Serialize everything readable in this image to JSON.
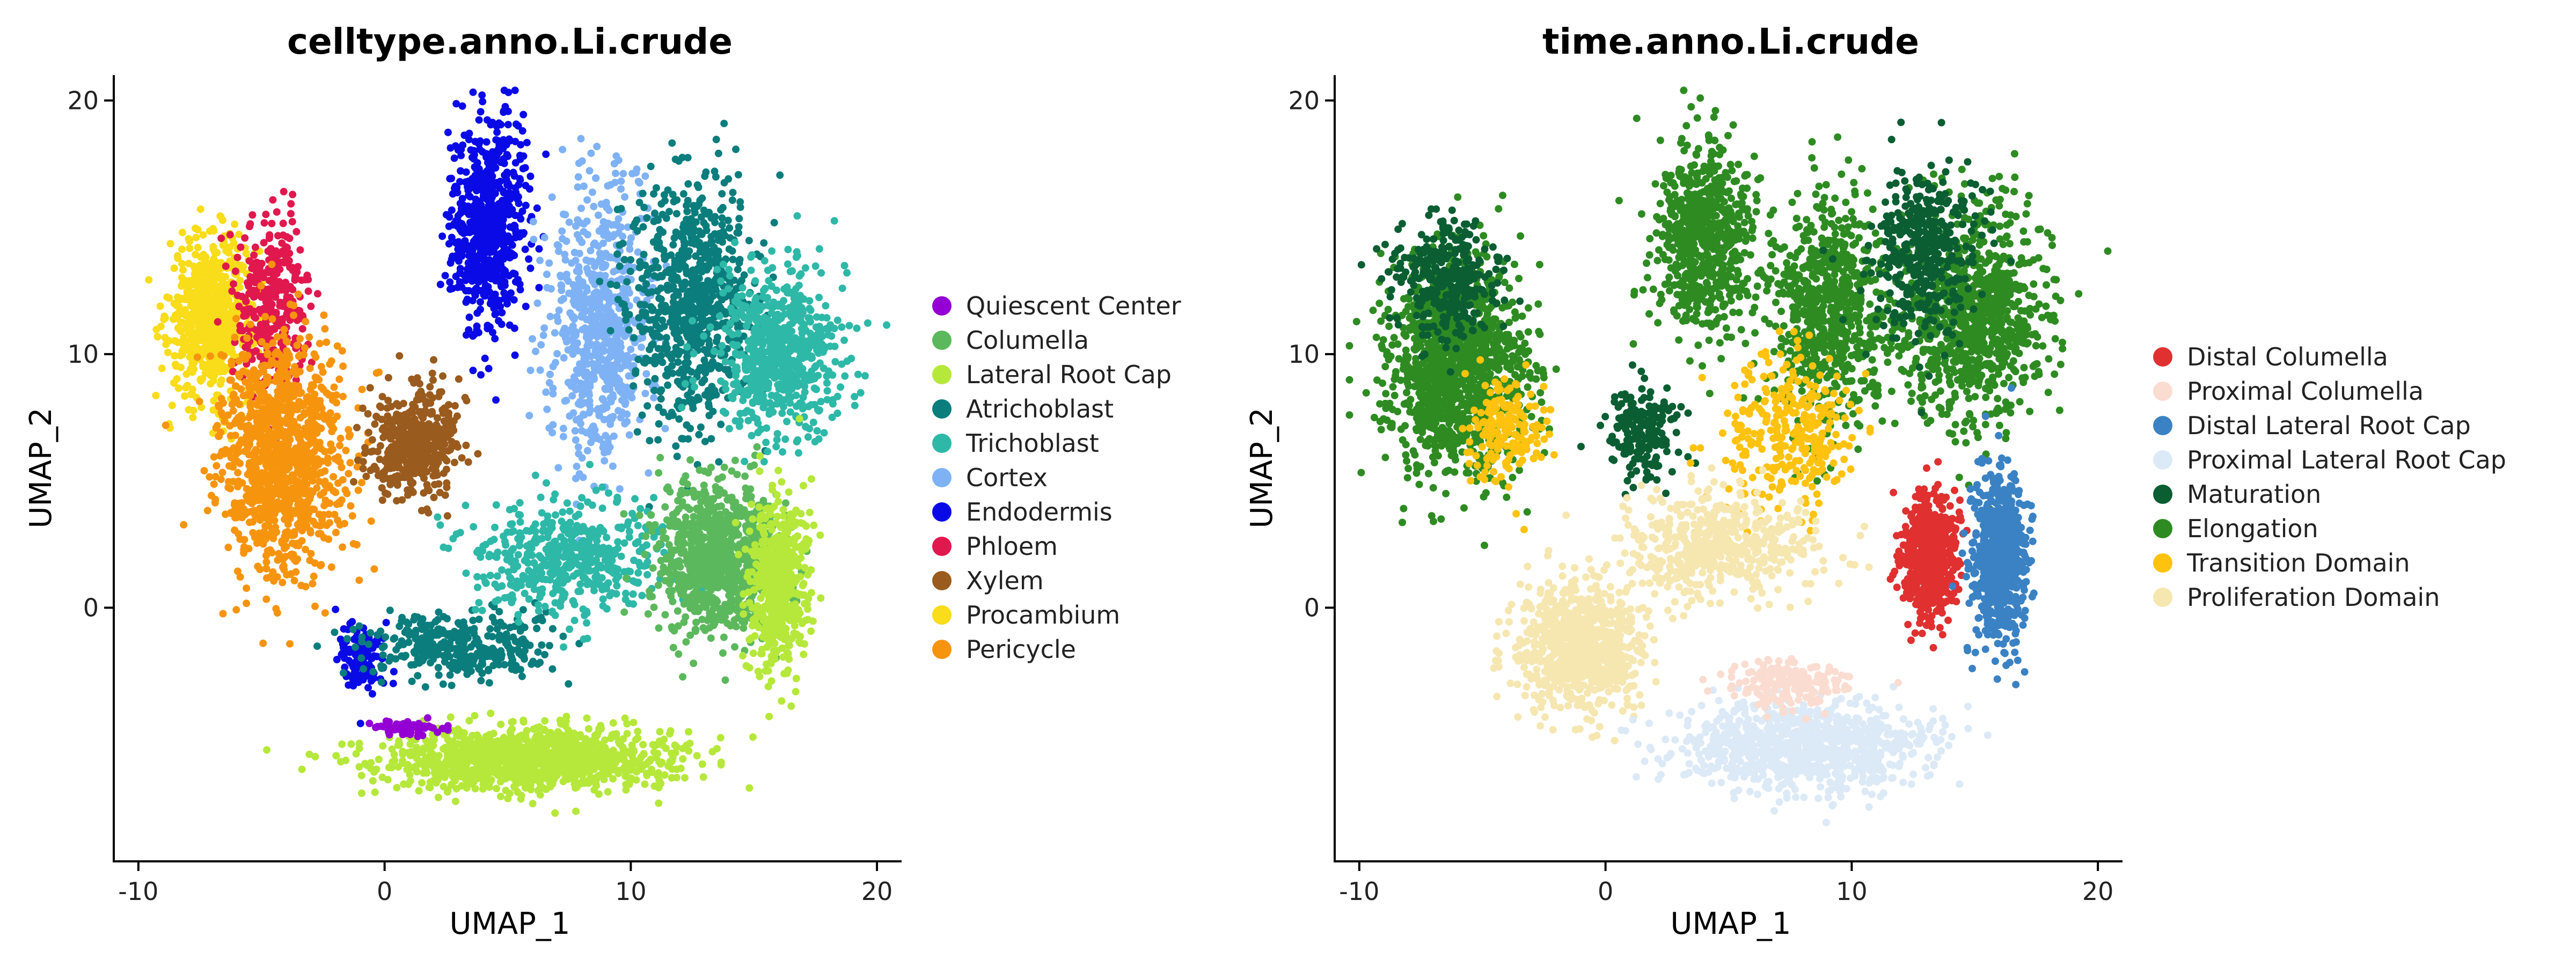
{
  "chart_data": [
    {
      "type": "scatter",
      "title": "celltype.anno.Li.crude",
      "xlabel": "UMAP_1",
      "ylabel": "UMAP_2",
      "xlim": [
        -11,
        21
      ],
      "ylim": [
        -10,
        21
      ],
      "x_ticks": [
        -10,
        0,
        10,
        20
      ],
      "y_ticks": [
        0,
        10,
        20
      ],
      "x_tick_labels": [
        "-10",
        "0",
        "10",
        "20"
      ],
      "y_tick_labels": [
        "0",
        "10",
        "20"
      ],
      "grid": false,
      "legend_position": "right",
      "series": [
        {
          "name": "Quiescent Center",
          "color": "#9400D3"
        },
        {
          "name": "Columella",
          "color": "#5CB85C"
        },
        {
          "name": "Lateral Root Cap",
          "color": "#B5E83A"
        },
        {
          "name": "Atrichoblast",
          "color": "#0B7D7D"
        },
        {
          "name": "Trichoblast",
          "color": "#2EB8A8"
        },
        {
          "name": "Cortex",
          "color": "#7FB2F5"
        },
        {
          "name": "Endodermis",
          "color": "#0A0AE6"
        },
        {
          "name": "Phloem",
          "color": "#E0184E"
        },
        {
          "name": "Xylem",
          "color": "#9A5B1E"
        },
        {
          "name": "Procambium",
          "color": "#F9DC1A"
        },
        {
          "name": "Pericycle",
          "color": "#F7940E"
        }
      ],
      "clusters": [
        {
          "series": "Procambium",
          "center": [
            -7.0,
            11.5
          ],
          "spread": [
            1.6,
            2.8
          ],
          "n": 700
        },
        {
          "series": "Phloem",
          "center": [
            -4.5,
            12.0
          ],
          "spread": [
            1.3,
            3.0
          ],
          "n": 350
        },
        {
          "series": "Pericycle",
          "center": [
            -4.2,
            6.0
          ],
          "spread": [
            2.3,
            4.2
          ],
          "n": 1100
        },
        {
          "series": "Xylem",
          "center": [
            1.2,
            6.5
          ],
          "spread": [
            1.6,
            2.0
          ],
          "n": 450
        },
        {
          "series": "Endodermis",
          "center": [
            4.2,
            15.0
          ],
          "spread": [
            1.4,
            3.6
          ],
          "n": 650
        },
        {
          "series": "Endodermis",
          "center": [
            -1.0,
            -2.0
          ],
          "spread": [
            0.9,
            1.2
          ],
          "n": 120
        },
        {
          "series": "Cortex",
          "center": [
            8.8,
            11.0
          ],
          "spread": [
            1.9,
            4.8
          ],
          "n": 700
        },
        {
          "series": "Atrichoblast",
          "center": [
            12.5,
            12.0
          ],
          "spread": [
            2.2,
            4.5
          ],
          "n": 750
        },
        {
          "series": "Atrichoblast",
          "center": [
            3.0,
            -1.5
          ],
          "spread": [
            3.5,
            1.2
          ],
          "n": 350
        },
        {
          "series": "Trichoblast",
          "center": [
            16.0,
            10.0
          ],
          "spread": [
            2.3,
            3.0
          ],
          "n": 650
        },
        {
          "series": "Trichoblast",
          "center": [
            7.5,
            2.0
          ],
          "spread": [
            3.5,
            2.0
          ],
          "n": 500
        },
        {
          "series": "Columella",
          "center": [
            13.5,
            2.0
          ],
          "spread": [
            2.2,
            2.6
          ],
          "n": 900
        },
        {
          "series": "Lateral Root Cap",
          "center": [
            16.0,
            1.0
          ],
          "spread": [
            1.1,
            3.2
          ],
          "n": 500
        },
        {
          "series": "Lateral Root Cap",
          "center": [
            6.0,
            -6.0
          ],
          "spread": [
            5.5,
            1.2
          ],
          "n": 1100
        },
        {
          "series": "Quiescent Center",
          "center": [
            1.0,
            -4.8
          ],
          "spread": [
            1.5,
            0.3
          ],
          "n": 60
        }
      ]
    },
    {
      "type": "scatter",
      "title": "time.anno.Li.crude",
      "xlabel": "UMAP_1",
      "ylabel": "UMAP_2",
      "xlim": [
        -11,
        21
      ],
      "ylim": [
        -10,
        21
      ],
      "x_ticks": [
        -10,
        0,
        10,
        20
      ],
      "y_ticks": [
        0,
        10,
        20
      ],
      "x_tick_labels": [
        "-10",
        "0",
        "10",
        "20"
      ],
      "y_tick_labels": [
        "0",
        "10",
        "20"
      ],
      "grid": false,
      "legend_position": "right",
      "series": [
        {
          "name": "Distal Columella",
          "color": "#E03030"
        },
        {
          "name": "Proximal Columella",
          "color": "#FBDCD0"
        },
        {
          "name": "Distal Lateral Root Cap",
          "color": "#3A82C4"
        },
        {
          "name": "Proximal Lateral Root Cap",
          "color": "#DCE9F6"
        },
        {
          "name": "Maturation",
          "color": "#0A5E32"
        },
        {
          "name": "Elongation",
          "color": "#2E8B22"
        },
        {
          "name": "Transition Domain",
          "color": "#FFC20E"
        },
        {
          "name": "Proliferation Domain",
          "color": "#F6E6B0"
        }
      ],
      "clusters": [
        {
          "series": "Elongation",
          "center": [
            -6.0,
            9.5
          ],
          "spread": [
            2.5,
            3.8
          ],
          "n": 1300
        },
        {
          "series": "Maturation",
          "center": [
            -6.5,
            13.0
          ],
          "spread": [
            2.0,
            2.2
          ],
          "n": 350
        },
        {
          "series": "Elongation",
          "center": [
            4.0,
            14.5
          ],
          "spread": [
            1.8,
            3.5
          ],
          "n": 700
        },
        {
          "series": "Elongation",
          "center": [
            9.0,
            11.5
          ],
          "spread": [
            2.0,
            4.0
          ],
          "n": 700
        },
        {
          "series": "Elongation",
          "center": [
            15.0,
            11.5
          ],
          "spread": [
            2.8,
            3.8
          ],
          "n": 900
        },
        {
          "series": "Maturation",
          "center": [
            13.0,
            14.0
          ],
          "spread": [
            2.0,
            3.0
          ],
          "n": 400
        },
        {
          "series": "Maturation",
          "center": [
            1.5,
            7.0
          ],
          "spread": [
            1.3,
            1.6
          ],
          "n": 200
        },
        {
          "series": "Transition Domain",
          "center": [
            7.5,
            7.0
          ],
          "spread": [
            2.5,
            3.0
          ],
          "n": 300
        },
        {
          "series": "Transition Domain",
          "center": [
            -4.0,
            7.0
          ],
          "spread": [
            1.5,
            1.8
          ],
          "n": 180
        },
        {
          "series": "Proliferation Domain",
          "center": [
            -1.0,
            -1.5
          ],
          "spread": [
            2.2,
            2.2
          ],
          "n": 800
        },
        {
          "series": "Proliferation Domain",
          "center": [
            4.5,
            2.5
          ],
          "spread": [
            3.8,
            1.8
          ],
          "n": 500
        },
        {
          "series": "Distal Columella",
          "center": [
            13.2,
            2.0
          ],
          "spread": [
            1.0,
            2.2
          ],
          "n": 600
        },
        {
          "series": "Distal Lateral Root Cap",
          "center": [
            16.0,
            2.0
          ],
          "spread": [
            1.0,
            3.0
          ],
          "n": 650
        },
        {
          "series": "Proximal Lateral Root Cap",
          "center": [
            8.0,
            -5.5
          ],
          "spread": [
            4.5,
            1.6
          ],
          "n": 900
        },
        {
          "series": "Proximal Columella",
          "center": [
            7.5,
            -3.0
          ],
          "spread": [
            2.0,
            0.8
          ],
          "n": 200
        }
      ]
    }
  ]
}
